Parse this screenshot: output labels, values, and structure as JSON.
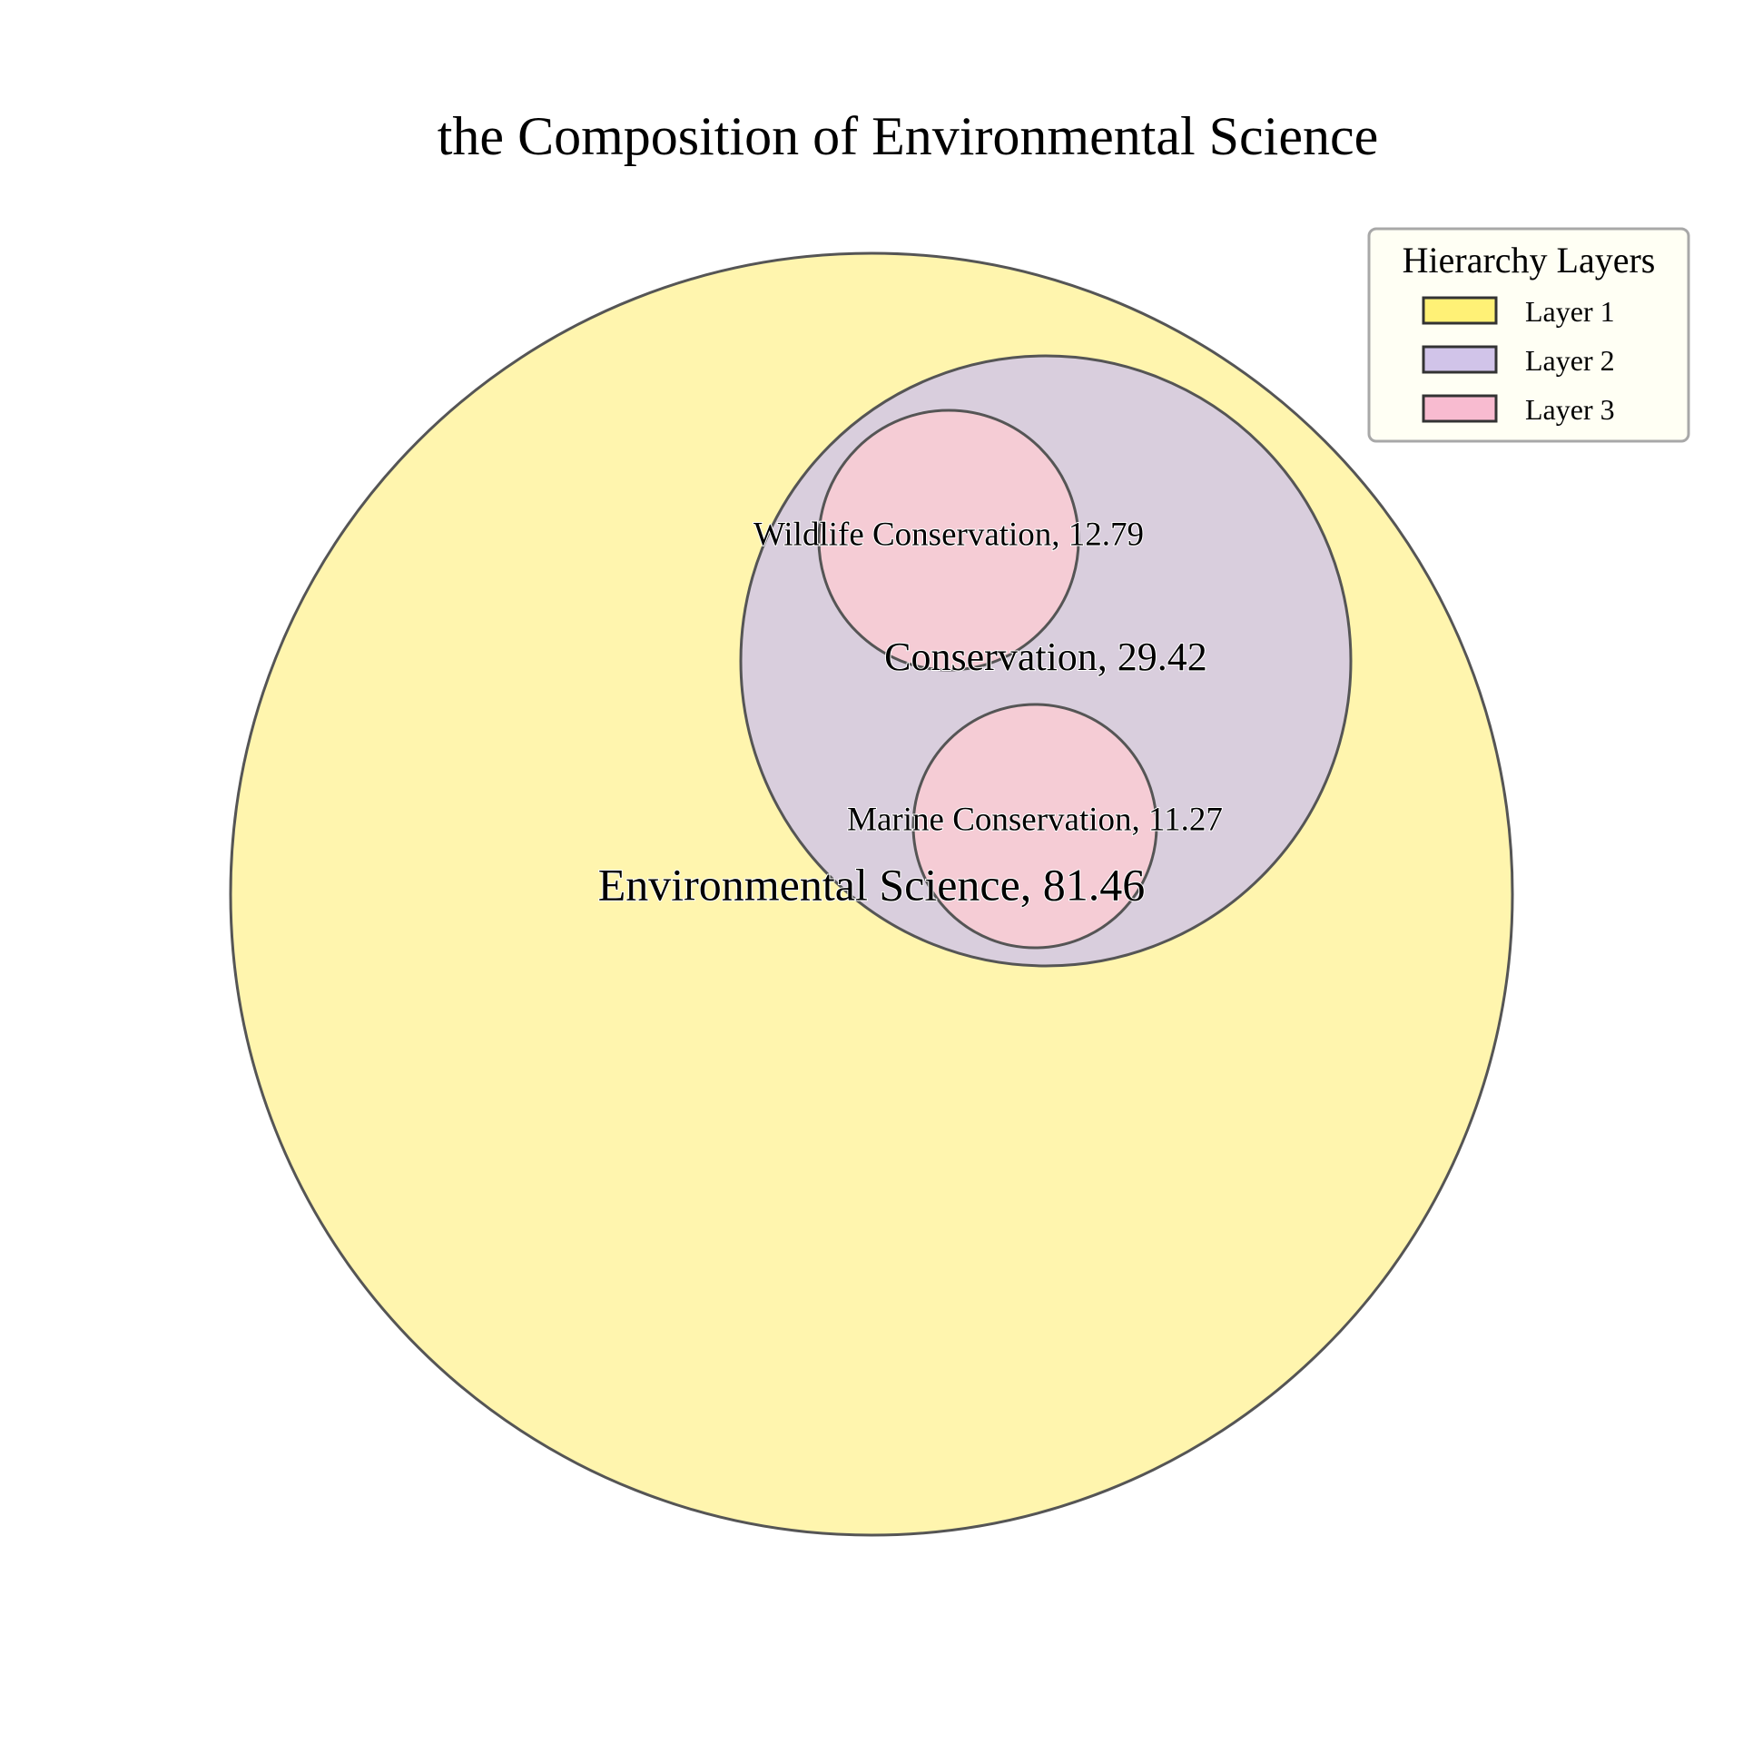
{
  "chart_data": {
    "type": "circle-packing",
    "title": "the Composition of Environmental Science",
    "nodes": [
      {
        "id": "env",
        "name": "Environmental Science",
        "value": 81.46,
        "layer": 1,
        "label": "Environmental Science, 81.46"
      },
      {
        "id": "cons",
        "name": "Conservation",
        "value": 29.42,
        "layer": 2,
        "parent": "env",
        "label": "Conservation, 29.42"
      },
      {
        "id": "wild",
        "name": "Wildlife Conservation",
        "value": 12.79,
        "layer": 3,
        "parent": "cons",
        "label": "Wildlife Conservation, 12.79"
      },
      {
        "id": "marine",
        "name": "Marine Conservation",
        "value": 11.27,
        "layer": 3,
        "parent": "cons",
        "label": "Marine Conservation, 11.27"
      }
    ],
    "legend": {
      "title": "Hierarchy Layers",
      "placement": "top-right",
      "items": [
        {
          "label": "Layer 1",
          "color": "#fff176"
        },
        {
          "label": "Layer 2",
          "color": "#d1c4e9"
        },
        {
          "label": "Layer 3",
          "color": "#f8bbd0"
        }
      ]
    },
    "colors": {
      "layer_1_fill": "#fff5ae",
      "layer_2_fill": "#d9cedd",
      "layer_3_fill": "#f5ccd5",
      "outline": "#555555"
    }
  }
}
